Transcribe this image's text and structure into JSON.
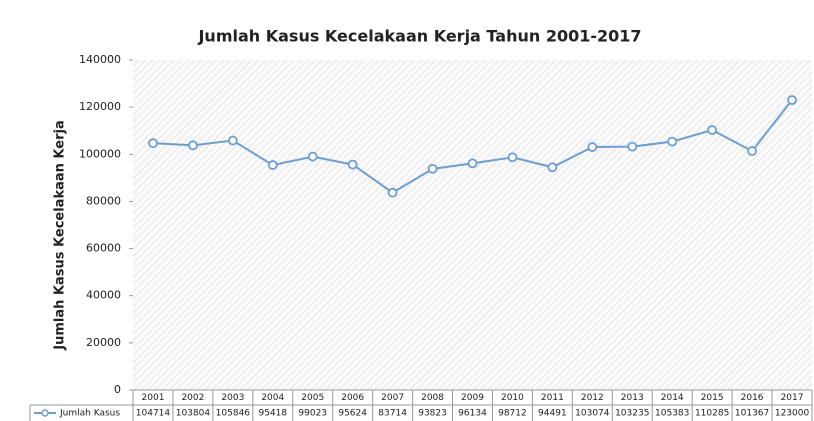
{
  "chart_data": {
    "type": "line",
    "title": "Jumlah Kasus Kecelakaan Kerja Tahun 2001-2017",
    "y_label": "Jumlah Kasus Kecelakaan Kerja",
    "categories": [
      "2001",
      "2002",
      "2003",
      "2004",
      "2005",
      "2006",
      "2007",
      "2008",
      "2009",
      "2010",
      "2011",
      "2012",
      "2013",
      "2014",
      "2015",
      "2016",
      "2017"
    ],
    "series": [
      {
        "name": "Jumlah Kasus",
        "color": "#6a9fd4",
        "values": [
          104714,
          103804,
          105846,
          95418,
          99023,
          95624,
          83714,
          93823,
          96134,
          98712,
          94491,
          103074,
          103235,
          105383,
          110285,
          101367,
          123000
        ]
      }
    ],
    "ylim": [
      0,
      140000
    ],
    "yticks": [
      0,
      20000,
      40000,
      60000,
      80000,
      100000,
      120000,
      140000
    ],
    "grid": false
  }
}
